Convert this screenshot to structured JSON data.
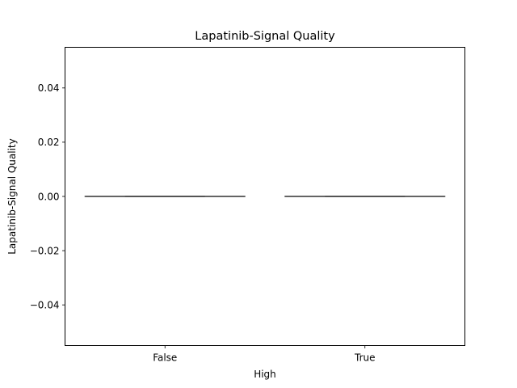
{
  "chart_data": {
    "type": "box",
    "title": "Lapatinib-Signal Quality",
    "xlabel": "High",
    "ylabel": "Lapatinib-Signal Quality",
    "categories": [
      "False",
      "True"
    ],
    "boxes": [
      {
        "category": "False",
        "min": 0.0,
        "q1": 0.0,
        "median": 0.0,
        "q3": 0.0,
        "max": 0.0
      },
      {
        "category": "True",
        "min": 0.0,
        "q1": 0.0,
        "median": 0.0,
        "q3": 0.0,
        "max": 0.0
      }
    ],
    "ylim": [
      -0.055,
      0.055
    ],
    "yticks": [
      -0.04,
      -0.02,
      0.0,
      0.02,
      0.04
    ],
    "ytick_labels": [
      "−0.04",
      "−0.02",
      "0.00",
      "0.02",
      "0.04"
    ],
    "grid": false,
    "colors": {
      "box_line": "#3f3f3f",
      "axes": "#000000",
      "background": "#ffffff"
    }
  }
}
